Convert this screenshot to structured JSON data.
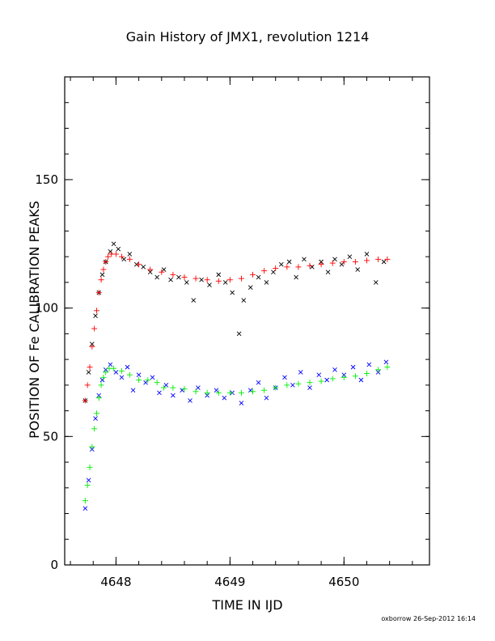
{
  "chart_data": {
    "type": "scatter",
    "title": "Gain History of JMX1, revolution 1214",
    "xlabel": "TIME IN IJD",
    "ylabel": "POSITION OF Fe CALIBRATION PEAKS",
    "xlim": [
      4647.55,
      4650.75
    ],
    "ylim": [
      0,
      190
    ],
    "x_ticks": [
      4648,
      4649,
      4650
    ],
    "y_ticks": [
      0,
      50,
      100,
      150
    ],
    "x_minor_step": 0.2,
    "y_minor_step": 10,
    "grid": false,
    "series": [
      {
        "color": "#000000",
        "marker": "x",
        "points": [
          [
            4647.73,
            64
          ],
          [
            4647.76,
            75
          ],
          [
            4647.79,
            86
          ],
          [
            4647.82,
            97
          ],
          [
            4647.85,
            106
          ],
          [
            4647.88,
            113
          ],
          [
            4647.91,
            118
          ],
          [
            4647.95,
            122
          ],
          [
            4647.98,
            125
          ],
          [
            4648.02,
            123
          ],
          [
            4648.07,
            119
          ],
          [
            4648.12,
            121
          ],
          [
            4648.18,
            117
          ],
          [
            4648.24,
            116
          ],
          [
            4648.3,
            114
          ],
          [
            4648.36,
            112
          ],
          [
            4648.42,
            115
          ],
          [
            4648.48,
            111
          ],
          [
            4648.55,
            112
          ],
          [
            4648.62,
            110
          ],
          [
            4648.68,
            103
          ],
          [
            4648.75,
            111
          ],
          [
            4648.82,
            109
          ],
          [
            4648.9,
            113
          ],
          [
            4648.96,
            110
          ],
          [
            4649.02,
            106
          ],
          [
            4649.08,
            90
          ],
          [
            4649.12,
            103
          ],
          [
            4649.18,
            108
          ],
          [
            4649.25,
            112
          ],
          [
            4649.32,
            110
          ],
          [
            4649.38,
            114
          ],
          [
            4649.45,
            117
          ],
          [
            4649.52,
            118
          ],
          [
            4649.58,
            112
          ],
          [
            4649.65,
            119
          ],
          [
            4649.72,
            116
          ],
          [
            4649.8,
            118
          ],
          [
            4649.86,
            114
          ],
          [
            4649.92,
            119
          ],
          [
            4649.98,
            117
          ],
          [
            4650.05,
            120
          ],
          [
            4650.12,
            115
          ],
          [
            4650.2,
            121
          ],
          [
            4650.28,
            110
          ],
          [
            4650.35,
            118
          ]
        ]
      },
      {
        "color": "#0000ff",
        "marker": "x",
        "points": [
          [
            4647.73,
            22
          ],
          [
            4647.76,
            33
          ],
          [
            4647.79,
            45
          ],
          [
            4647.82,
            57
          ],
          [
            4647.85,
            66
          ],
          [
            4647.88,
            72
          ],
          [
            4647.91,
            76
          ],
          [
            4647.95,
            78
          ],
          [
            4648.0,
            75
          ],
          [
            4648.05,
            73
          ],
          [
            4648.1,
            77
          ],
          [
            4648.15,
            68
          ],
          [
            4648.2,
            74
          ],
          [
            4648.26,
            71
          ],
          [
            4648.32,
            73
          ],
          [
            4648.38,
            67
          ],
          [
            4648.44,
            70
          ],
          [
            4648.5,
            66
          ],
          [
            4648.58,
            68
          ],
          [
            4648.65,
            64
          ],
          [
            4648.72,
            69
          ],
          [
            4648.8,
            66
          ],
          [
            4648.88,
            68
          ],
          [
            4648.95,
            65
          ],
          [
            4649.02,
            67
          ],
          [
            4649.1,
            63
          ],
          [
            4649.18,
            68
          ],
          [
            4649.25,
            71
          ],
          [
            4649.32,
            65
          ],
          [
            4649.4,
            69
          ],
          [
            4649.48,
            73
          ],
          [
            4649.55,
            70
          ],
          [
            4649.62,
            75
          ],
          [
            4649.7,
            69
          ],
          [
            4649.78,
            74
          ],
          [
            4649.85,
            72
          ],
          [
            4649.92,
            76
          ],
          [
            4650.0,
            74
          ],
          [
            4650.08,
            77
          ],
          [
            4650.15,
            72
          ],
          [
            4650.22,
            78
          ],
          [
            4650.3,
            75
          ],
          [
            4650.37,
            79
          ]
        ]
      },
      {
        "color": "#ff0000",
        "marker": "+",
        "points": [
          [
            4647.73,
            64
          ],
          [
            4647.75,
            70
          ],
          [
            4647.77,
            77
          ],
          [
            4647.79,
            85
          ],
          [
            4647.81,
            92
          ],
          [
            4647.83,
            99
          ],
          [
            4647.85,
            106
          ],
          [
            4647.87,
            111
          ],
          [
            4647.89,
            115
          ],
          [
            4647.91,
            118
          ],
          [
            4647.93,
            120
          ],
          [
            4647.96,
            121
          ],
          [
            4648.0,
            121
          ],
          [
            4648.05,
            120
          ],
          [
            4648.12,
            119
          ],
          [
            4648.2,
            117
          ],
          [
            4648.3,
            115
          ],
          [
            4648.4,
            114
          ],
          [
            4648.5,
            113
          ],
          [
            4648.6,
            112
          ],
          [
            4648.7,
            111.5
          ],
          [
            4648.8,
            111
          ],
          [
            4648.9,
            110.5
          ],
          [
            4649.0,
            111
          ],
          [
            4649.1,
            111.5
          ],
          [
            4649.2,
            113
          ],
          [
            4649.3,
            114.5
          ],
          [
            4649.4,
            115.5
          ],
          [
            4649.5,
            116
          ],
          [
            4649.6,
            116
          ],
          [
            4649.7,
            116.5
          ],
          [
            4649.8,
            117
          ],
          [
            4649.9,
            117.5
          ],
          [
            4650.0,
            118
          ],
          [
            4650.1,
            118
          ],
          [
            4650.2,
            118.5
          ],
          [
            4650.3,
            119
          ],
          [
            4650.38,
            119
          ]
        ]
      },
      {
        "color": "#00ee00",
        "marker": "+",
        "points": [
          [
            4647.73,
            25
          ],
          [
            4647.75,
            31
          ],
          [
            4647.77,
            38
          ],
          [
            4647.79,
            46
          ],
          [
            4647.81,
            53
          ],
          [
            4647.83,
            59
          ],
          [
            4647.85,
            65
          ],
          [
            4647.87,
            70
          ],
          [
            4647.89,
            73
          ],
          [
            4647.91,
            75
          ],
          [
            4647.94,
            76.5
          ],
          [
            4647.98,
            76.5
          ],
          [
            4648.05,
            75.5
          ],
          [
            4648.12,
            74
          ],
          [
            4648.2,
            72
          ],
          [
            4648.28,
            72
          ],
          [
            4648.36,
            71
          ],
          [
            4648.42,
            69
          ],
          [
            4648.5,
            69
          ],
          [
            4648.6,
            68.5
          ],
          [
            4648.7,
            67.5
          ],
          [
            4648.8,
            67
          ],
          [
            4648.9,
            67
          ],
          [
            4649.0,
            67
          ],
          [
            4649.1,
            67
          ],
          [
            4649.2,
            67.5
          ],
          [
            4649.3,
            68
          ],
          [
            4649.4,
            69
          ],
          [
            4649.5,
            70
          ],
          [
            4649.6,
            70.5
          ],
          [
            4649.7,
            71
          ],
          [
            4649.8,
            71.5
          ],
          [
            4649.9,
            72.5
          ],
          [
            4650.0,
            73
          ],
          [
            4650.1,
            73.5
          ],
          [
            4650.2,
            74.5
          ],
          [
            4650.3,
            76
          ],
          [
            4650.38,
            77
          ]
        ]
      }
    ]
  },
  "footer": {
    "credit": "oxborrow 26-Sep-2012 16:14"
  }
}
